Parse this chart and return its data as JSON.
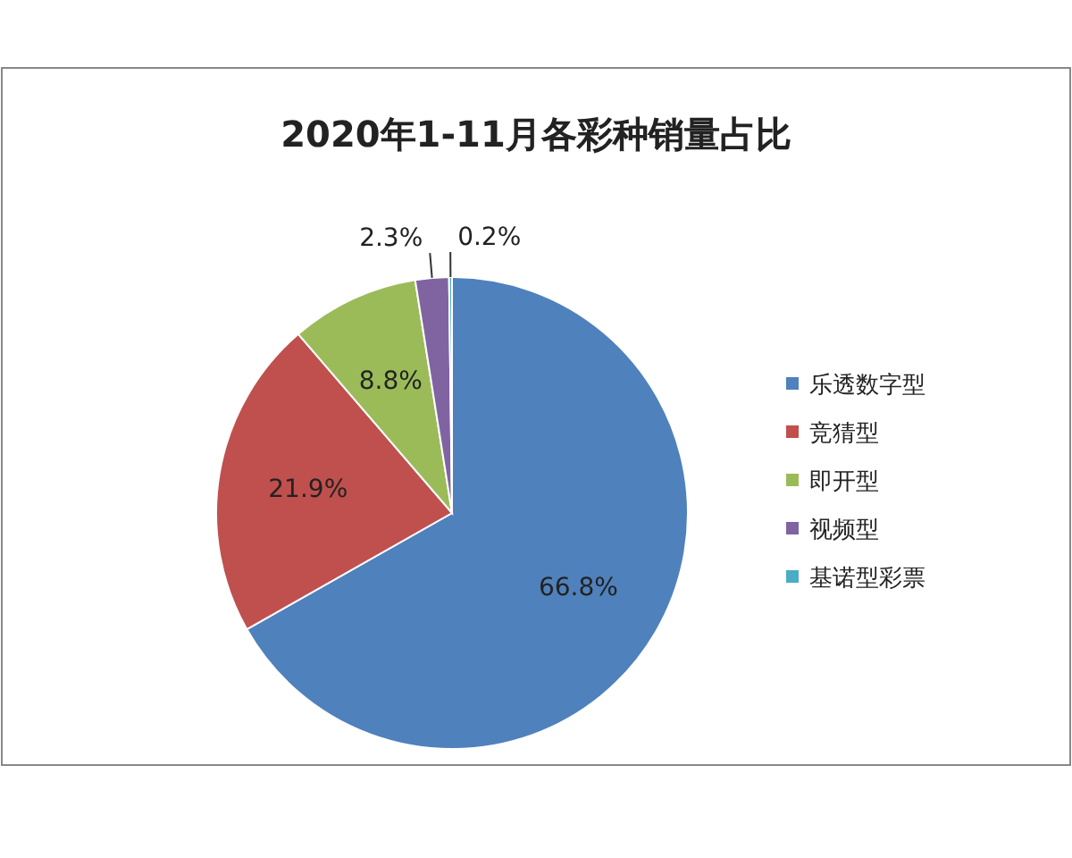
{
  "chart_data": {
    "type": "pie",
    "title": "2020年1-11月各彩种销量占比",
    "categories": [
      "乐透数字型",
      "竞猜型",
      "即开型",
      "视频型",
      "基诺型彩票"
    ],
    "values": [
      66.8,
      21.9,
      8.8,
      2.3,
      0.2
    ],
    "value_labels": [
      "66.8%",
      "21.9%",
      "8.8%",
      "2.3%",
      "0.2%"
    ],
    "colors": [
      "#4f81bd",
      "#c0504d",
      "#9bbb59",
      "#8064a2",
      "#4bacc6"
    ],
    "legend": "right"
  }
}
